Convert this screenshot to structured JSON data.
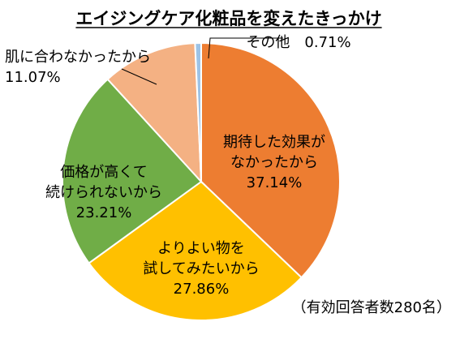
{
  "chart_data": {
    "type": "pie",
    "title": "エイジングケア化粧品を変えたきっかけ",
    "note": "（有効回答者数280名）",
    "start_angle_deg": 0,
    "direction": "clockwise",
    "slices": [
      {
        "label_lines": [
          "期待した効果が",
          "なかったから"
        ],
        "value": 37.14,
        "value_label": "37.14%",
        "color": "#ED7D31"
      },
      {
        "label_lines": [
          "よりよい物を",
          "試してみたいから"
        ],
        "value": 27.86,
        "value_label": "27.86%",
        "color": "#FFC000"
      },
      {
        "label_lines": [
          "価格が高くて",
          "続けられないから"
        ],
        "value": 23.21,
        "value_label": "23.21%",
        "color": "#70AD47"
      },
      {
        "label_lines": [
          "肌に合わなかったから"
        ],
        "value": 11.07,
        "value_label": "11.07%",
        "color": "#F4B183"
      },
      {
        "label_lines": [
          "その他"
        ],
        "value": 0.71,
        "value_label": "0.71%",
        "color": "#9DC3E6"
      }
    ]
  }
}
